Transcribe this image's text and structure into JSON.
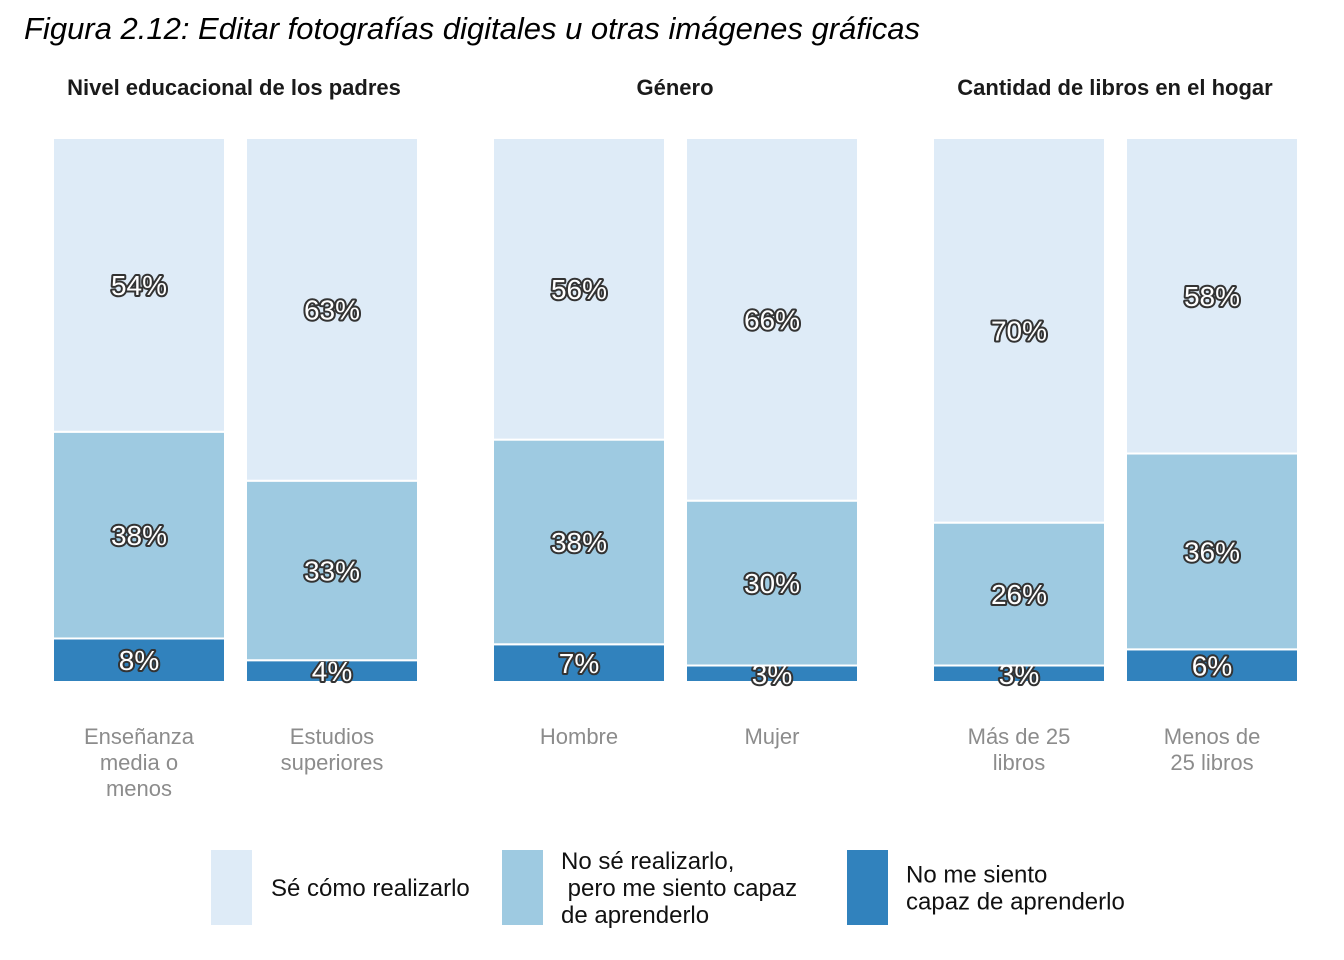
{
  "chart_data": {
    "type": "bar",
    "stacked": true,
    "title": "Figura 2.12: Editar fotografías digitales u otras imágenes gráficas",
    "ylim": [
      0,
      100
    ],
    "grid": false,
    "legend_position": "bottom",
    "series": [
      {
        "name": "No me siento capaz de aprenderlo",
        "legend_lines": [
          "No me siento",
          "capaz de aprenderlo"
        ],
        "color": "#3182bd"
      },
      {
        "name": "No sé realizarlo, pero me siento capaz de aprenderlo",
        "legend_lines": [
          "No sé realizarlo,",
          " pero me siento capaz",
          "de aprenderlo"
        ],
        "color": "#9ecae1"
      },
      {
        "name": "Sé cómo realizarlo",
        "legend_lines": [
          "Sé cómo realizarlo"
        ],
        "color": "#deebf7"
      }
    ],
    "legend_order": [
      2,
      1,
      0
    ],
    "panels": [
      {
        "title": "Nivel educacional de los padres",
        "categories": [
          {
            "label_lines": [
              "Enseñanza",
              "media o",
              "menos"
            ],
            "values": [
              8,
              38,
              54
            ]
          },
          {
            "label_lines": [
              "Estudios",
              "superiores"
            ],
            "values": [
              4,
              33,
              63
            ]
          }
        ]
      },
      {
        "title": "Género",
        "categories": [
          {
            "label_lines": [
              "Hombre"
            ],
            "values": [
              7,
              38,
              56
            ]
          },
          {
            "label_lines": [
              "Mujer"
            ],
            "values": [
              3,
              30,
              66
            ]
          }
        ]
      },
      {
        "title": "Cantidad de libros en el hogar",
        "categories": [
          {
            "label_lines": [
              "Más de 25",
              "libros"
            ],
            "values": [
              3,
              26,
              70
            ]
          },
          {
            "label_lines": [
              "Menos de",
              "25 libros"
            ],
            "values": [
              6,
              36,
              58
            ]
          }
        ]
      }
    ]
  }
}
